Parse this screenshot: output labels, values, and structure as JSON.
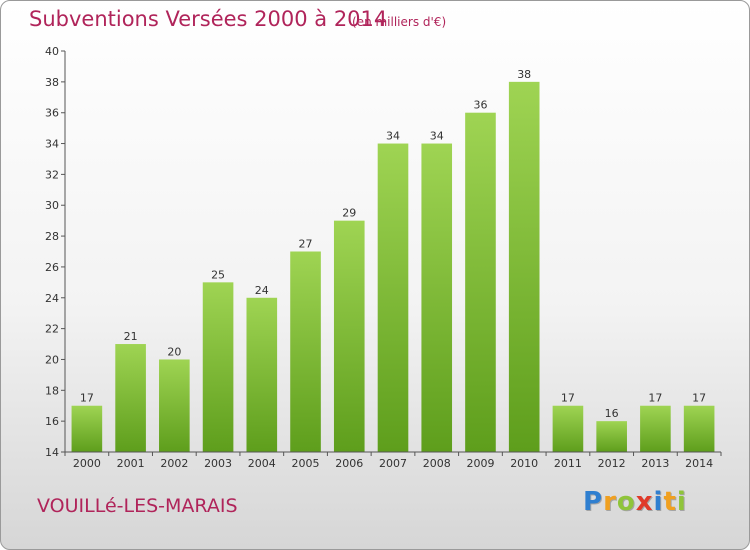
{
  "chart_data": {
    "type": "bar",
    "title": "Subventions Versées 2000 à 2014",
    "subtitle": "(en milliers d'€)",
    "categories": [
      "2000",
      "2001",
      "2002",
      "2003",
      "2004",
      "2005",
      "2006",
      "2007",
      "2008",
      "2009",
      "2010",
      "2011",
      "2012",
      "2013",
      "2014"
    ],
    "values": [
      17,
      21,
      20,
      25,
      24,
      27,
      29,
      34,
      34,
      36,
      38,
      17,
      16,
      17,
      17
    ],
    "ylim": [
      14,
      40
    ],
    "yticks": [
      14,
      16,
      18,
      20,
      22,
      24,
      26,
      28,
      30,
      32,
      34,
      36,
      38,
      40
    ],
    "grid": false,
    "bar_color": "#7ec13a"
  },
  "footer": {
    "commune": "VOUILLé-LES-MARAIS"
  },
  "logo": {
    "letters": [
      {
        "char": "P",
        "color": "#2f7fd0"
      },
      {
        "char": "r",
        "color": "#f0a020"
      },
      {
        "char": "o",
        "color": "#8fc43a"
      },
      {
        "char": "x",
        "color": "#e03a2a"
      },
      {
        "char": "i",
        "color": "#2f7fd0"
      },
      {
        "char": "t",
        "color": "#f0a020"
      },
      {
        "char": "i",
        "color": "#8fc43a"
      }
    ]
  }
}
